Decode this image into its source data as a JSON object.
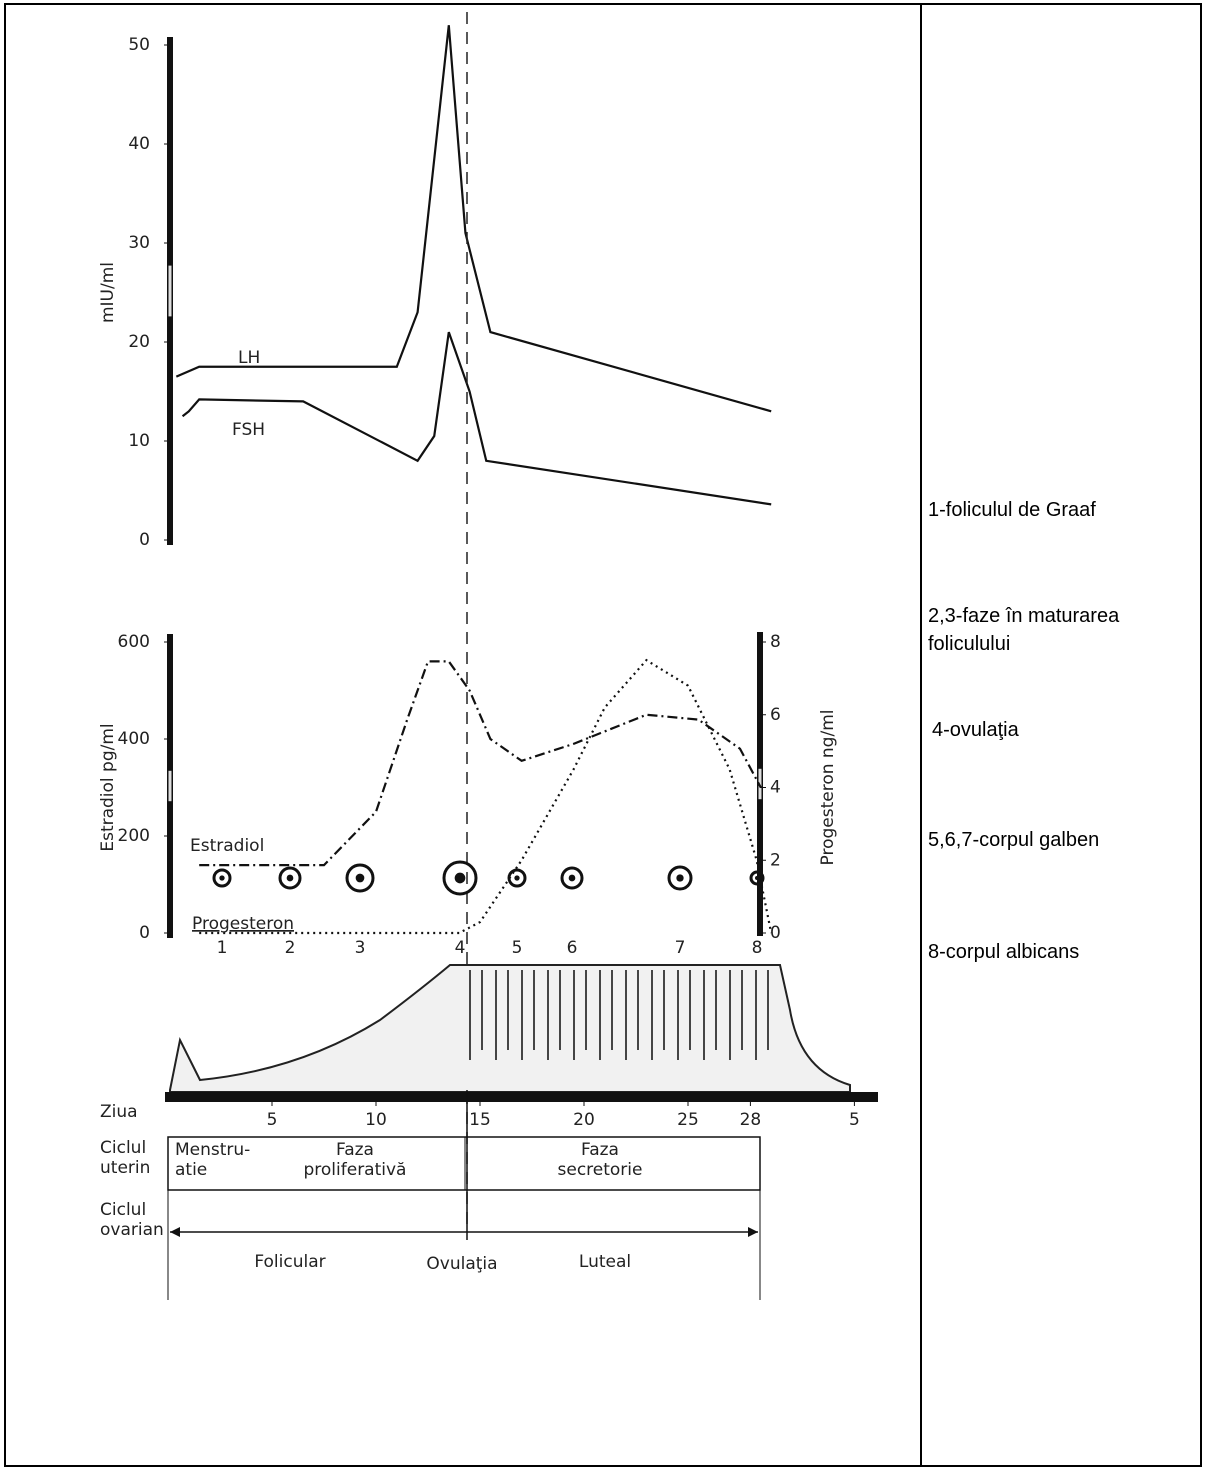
{
  "figure": {
    "gonadotropins": {
      "type": "line",
      "ylabel": "mIU/ml",
      "ylim": [
        0,
        50
      ],
      "yticks": [
        0,
        10,
        20,
        30,
        40,
        50
      ],
      "series": [
        {
          "name": "LH",
          "x": [
            0.4,
            1.5,
            11,
            12,
            13.5,
            14.3,
            15.5,
            29
          ],
          "values": [
            16.5,
            17.5,
            17.5,
            23,
            52,
            31,
            21,
            13
          ]
        },
        {
          "name": "FSH",
          "x": [
            0.7,
            1,
            1.5,
            6.5,
            12,
            12.8,
            13.5,
            14.5,
            15.3,
            29
          ],
          "values": [
            12.5,
            13,
            14.2,
            14,
            8,
            10.5,
            21,
            15,
            8,
            3.6
          ]
        }
      ]
    },
    "steroids": {
      "type": "line",
      "ylabel": "Estradiol pg/ml",
      "ylim": [
        0,
        600
      ],
      "yticks": [
        0,
        200,
        400,
        600
      ],
      "y2label": "Progesteron ng/ml",
      "y2lim": [
        0,
        8
      ],
      "y2ticks": [
        0,
        2,
        4,
        6,
        8
      ],
      "series": [
        {
          "name": "Estradiol",
          "x": [
            1.5,
            7.5,
            10,
            11.5,
            12.5,
            13.5,
            14.5,
            15.5,
            17,
            19.5,
            23,
            25.5,
            27.5,
            28.5
          ],
          "values": [
            140,
            140,
            250,
            440,
            560,
            560,
            500,
            400,
            355,
            390,
            450,
            440,
            380,
            300
          ]
        },
        {
          "name": "Progesteron",
          "axis": "y2",
          "x": [
            1.5,
            14,
            15,
            17,
            19.5,
            21,
            23,
            25,
            27,
            28.3,
            29
          ],
          "values": [
            0,
            0,
            0.3,
            2,
            4.5,
            6.2,
            7.5,
            6.8,
            4.5,
            2,
            0
          ]
        }
      ]
    },
    "follicles": [
      "1",
      "2",
      "3",
      "4",
      "5",
      "6",
      "7",
      "8"
    ],
    "day_axis": {
      "label": "Ziua",
      "xticks": [
        5,
        10,
        15,
        20,
        25,
        28,
        {
          "value": 33,
          "label": "5"
        }
      ]
    },
    "uterine_cycle": {
      "label": [
        "Ciclul",
        "uterin"
      ],
      "phases": [
        [
          "Menstru-",
          "atie"
        ],
        [
          "Faza",
          "proliferativă"
        ],
        [
          "Faza",
          "secretorie"
        ]
      ]
    },
    "ovarian_cycle": {
      "label": [
        "Ciclul",
        "ovarian"
      ],
      "phases": [
        "Folicular",
        "Ovulaţia",
        "Luteal"
      ]
    }
  },
  "legend": [
    "1-foliculul de Graaf",
    "2,3-faze în maturarea foliculului",
    "4-ovulaţia",
    "5,6,7-corpul galben",
    "8-corpul albicans"
  ]
}
